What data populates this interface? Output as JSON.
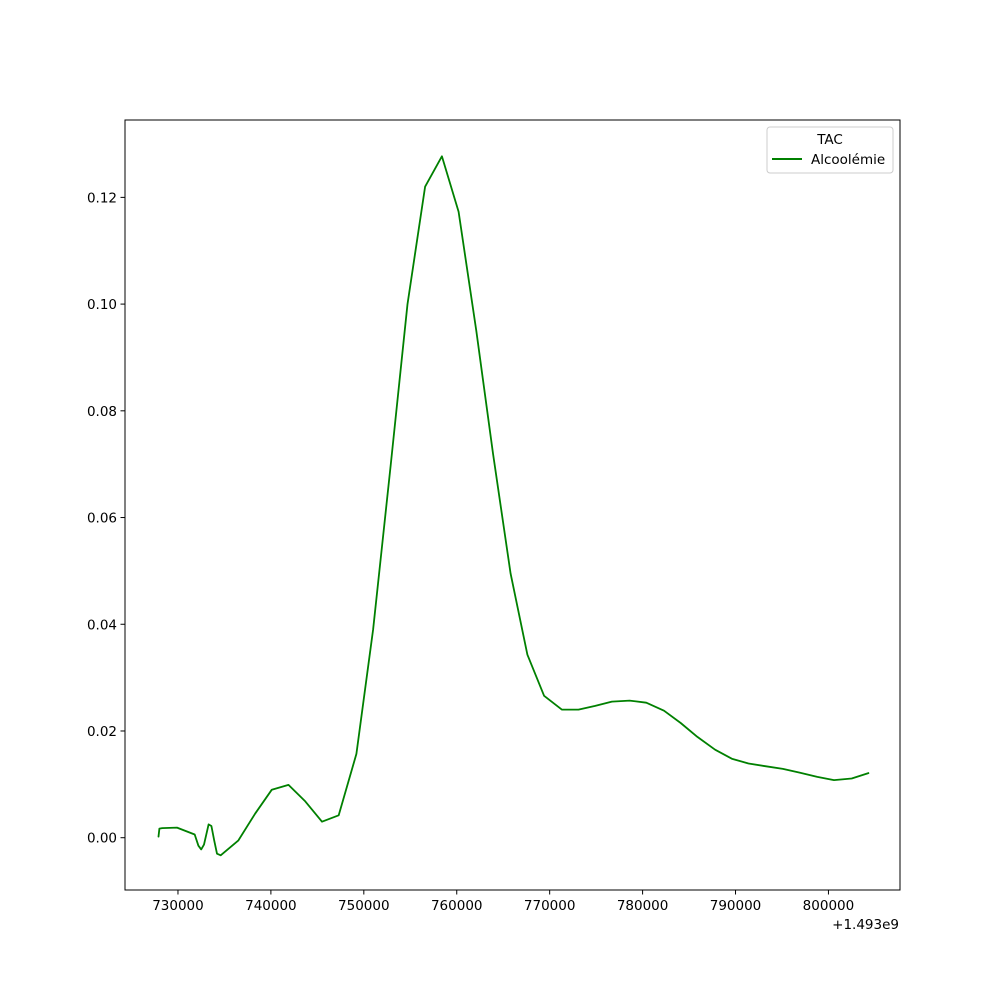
{
  "chart_data": {
    "type": "line",
    "x_offset_label": "+1.493e9",
    "xlim": [
      724300,
      807700
    ],
    "ylim": [
      -0.0098,
      0.1345
    ],
    "xticks": [
      730000,
      740000,
      750000,
      760000,
      770000,
      780000,
      790000,
      800000
    ],
    "xtick_labels": [
      "730000",
      "740000",
      "750000",
      "760000",
      "770000",
      "780000",
      "790000",
      "800000"
    ],
    "yticks": [
      0.0,
      0.02,
      0.04,
      0.06,
      0.08,
      0.1,
      0.12
    ],
    "ytick_labels": [
      "0.00",
      "0.02",
      "0.04",
      "0.06",
      "0.08",
      "0.10",
      "0.12"
    ],
    "legend": {
      "title": "TAC",
      "placement": "top-right"
    },
    "series": [
      {
        "name": "Alcoolémie",
        "color": "#008000",
        "x": [
          727900,
          728000,
          728300,
          729900,
          731800,
          732200,
          732500,
          732800,
          733300,
          733600,
          733900,
          734200,
          734600,
          736500,
          738300,
          740100,
          741900,
          743700,
          745500,
          747300,
          749200,
          751000,
          752900,
          754700,
          756600,
          758400,
          760200,
          762100,
          763900,
          765800,
          767600,
          769400,
          771300,
          773100,
          774900,
          776700,
          778600,
          780400,
          782300,
          784100,
          785900,
          787800,
          789600,
          791400,
          793200,
          795100,
          796900,
          798800,
          800600,
          802500,
          804300
        ],
        "y": [
          0.0002,
          0.0017,
          0.0018,
          0.0019,
          0.0006,
          -0.0015,
          -0.0022,
          -0.0013,
          0.0025,
          0.0022,
          -0.0005,
          -0.003,
          -0.0033,
          -0.0005,
          0.0045,
          0.009,
          0.0099,
          0.0068,
          0.003,
          0.0042,
          0.0157,
          0.039,
          0.07,
          0.1,
          0.122,
          0.1277,
          0.1173,
          0.095,
          0.072,
          0.0495,
          0.0343,
          0.0266,
          0.024,
          0.024,
          0.0247,
          0.0255,
          0.0257,
          0.0253,
          0.0238,
          0.0215,
          0.0189,
          0.0165,
          0.0148,
          0.0139,
          0.0134,
          0.0129,
          0.0122,
          0.0114,
          0.0108,
          0.0111,
          0.0121
        ]
      }
    ]
  }
}
